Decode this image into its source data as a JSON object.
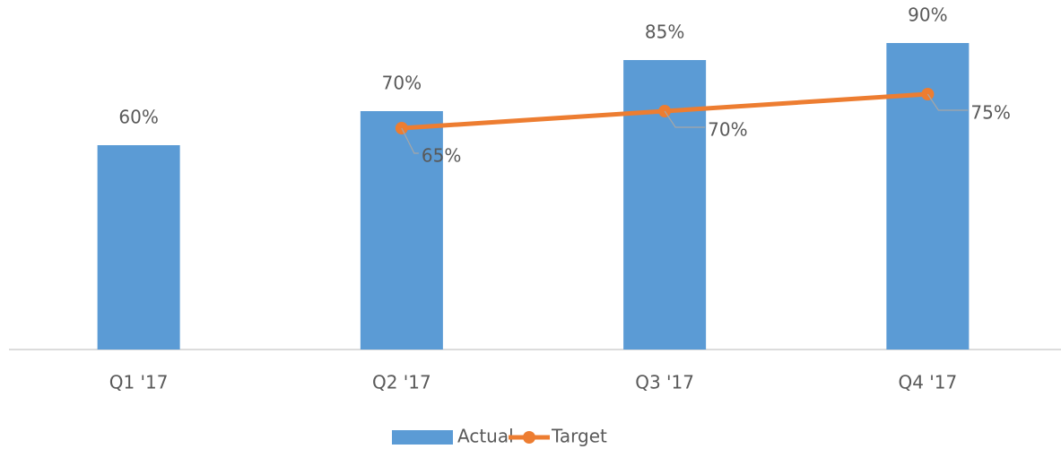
{
  "chart_data": {
    "type": "bar",
    "categories": [
      "Q1 '17",
      "Q2 '17",
      "Q3 '17",
      "Q4 '17"
    ],
    "series": [
      {
        "name": "Actual",
        "type": "bar",
        "color": "#5b9bd5",
        "values": [
          60,
          70,
          85,
          90
        ],
        "value_labels": [
          "60%",
          "70%",
          "85%",
          "90%"
        ]
      },
      {
        "name": "Target",
        "type": "line",
        "color": "#ed7d31",
        "values": [
          null,
          65,
          70,
          75
        ],
        "value_labels": [
          null,
          "65%",
          "70%",
          "75%"
        ]
      }
    ],
    "ylim": [
      0,
      100
    ],
    "grid": false,
    "legend": "bottom"
  }
}
